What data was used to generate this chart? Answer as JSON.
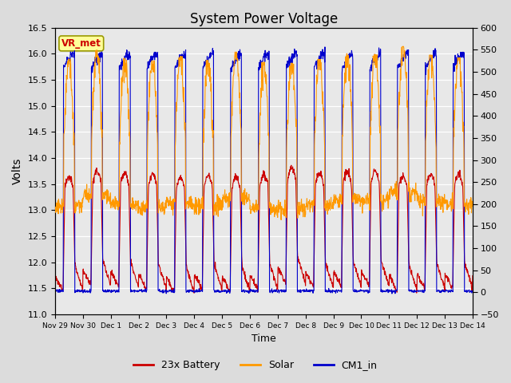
{
  "title": "System Power Voltage",
  "xlabel": "Time",
  "ylabel_left": "Volts",
  "ylim_left": [
    11.0,
    16.5
  ],
  "ylim_right": [
    -50,
    600
  ],
  "yticks_left": [
    11.0,
    11.5,
    12.0,
    12.5,
    13.0,
    13.5,
    14.0,
    14.5,
    15.0,
    15.5,
    16.0,
    16.5
  ],
  "yticks_right": [
    -50,
    0,
    50,
    100,
    150,
    200,
    250,
    300,
    350,
    400,
    450,
    500,
    550,
    600
  ],
  "bg_color": "#dcdcdc",
  "plot_bg_color": "#e8e8e8",
  "annotation_text": "VR_met",
  "x_tick_labels": [
    "Nov 29",
    "Nov 30",
    "Dec 1",
    "Dec 2",
    "Dec 3",
    "Dec 4",
    "Dec 5",
    "Dec 6",
    "Dec 7",
    "Dec 8",
    "Dec 9",
    "Dec 10",
    "Dec 11",
    "Dec 12",
    "Dec 13",
    "Dec 14"
  ],
  "legend_colors": [
    "#cc0000",
    "#ff9900",
    "#0000cc"
  ],
  "legend_labels": [
    "23x Battery",
    "Solar",
    "CM1_in"
  ]
}
